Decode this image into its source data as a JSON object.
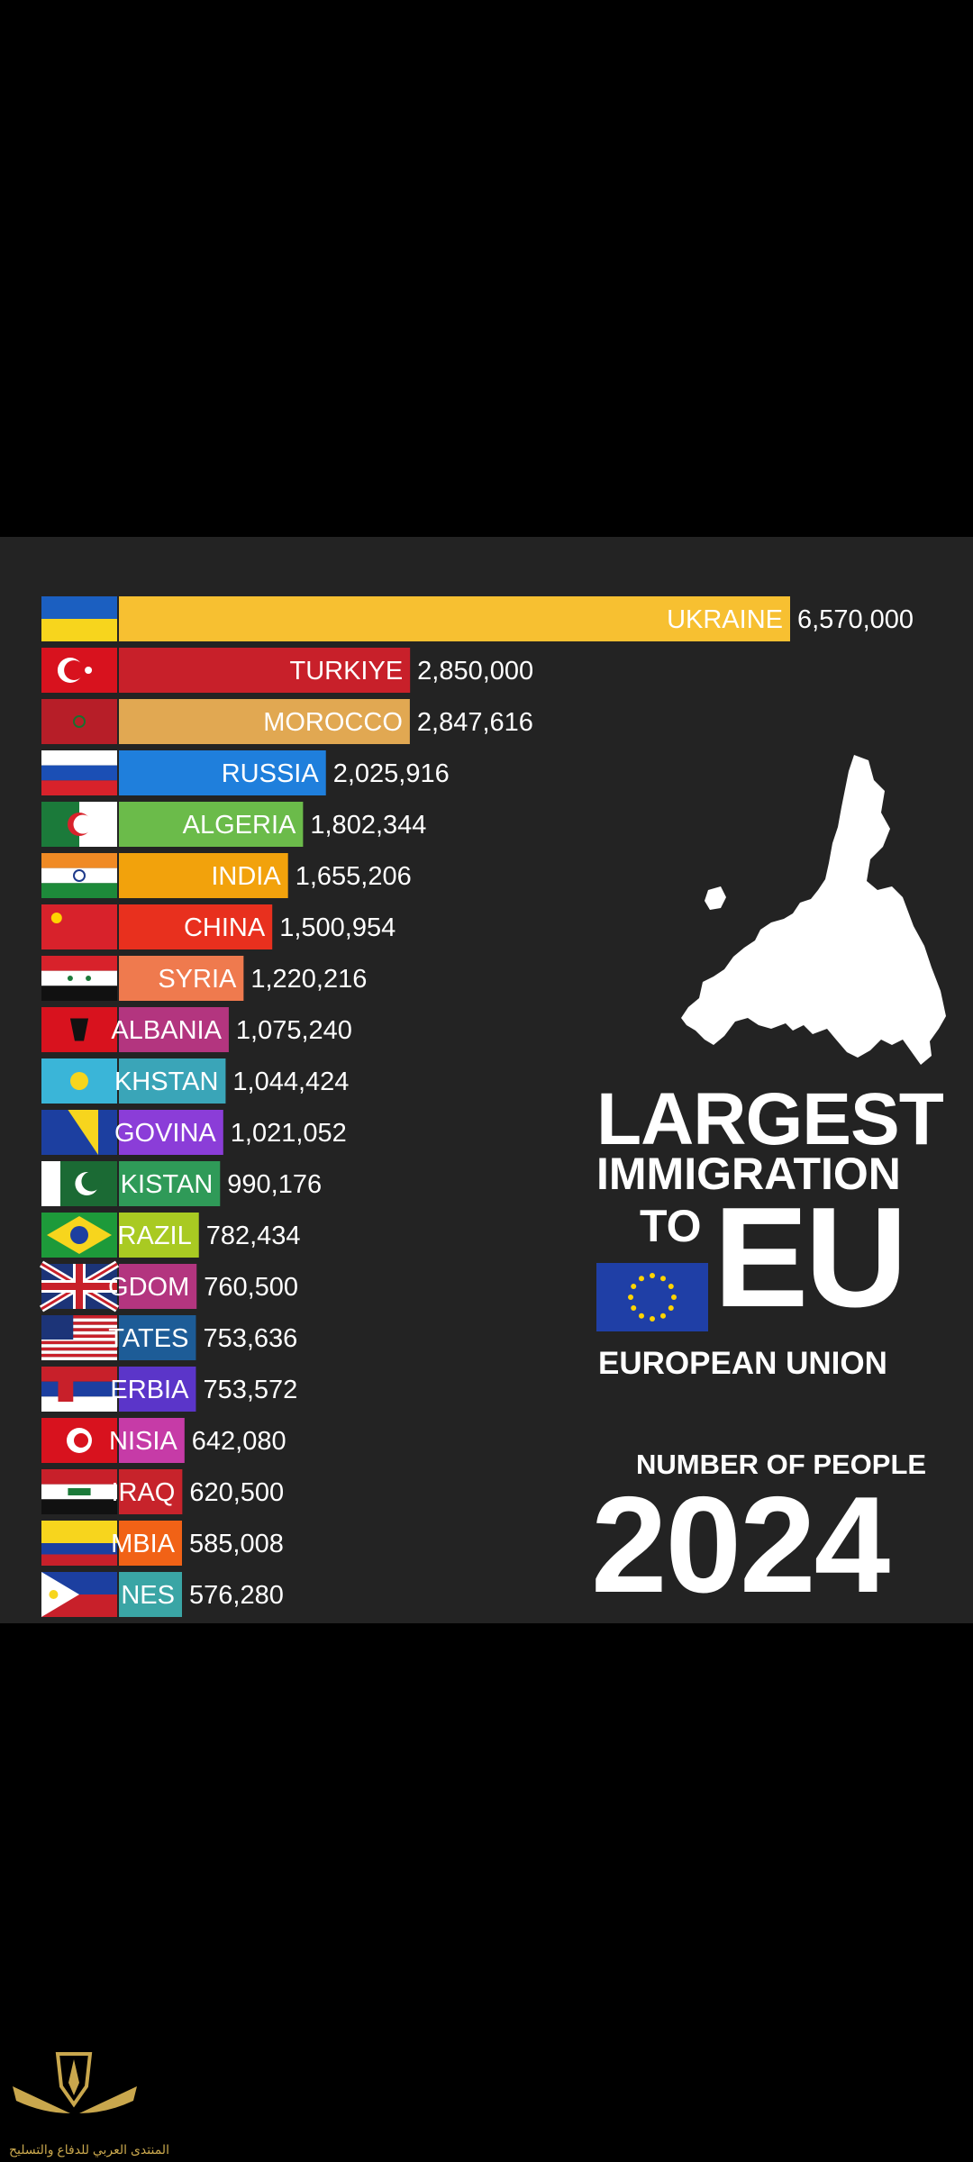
{
  "chart_data": {
    "type": "bar",
    "orientation": "horizontal",
    "categories": [
      "UKRAINE",
      "TURKIYE",
      "MOROCCO",
      "RUSSIA",
      "ALGERIA",
      "INDIA",
      "CHINA",
      "SYRIA",
      "ALBANIA",
      "KHSTAN",
      "GOVINA",
      "KISTAN",
      "RAZIL",
      "GDOM",
      "TATES",
      "ERBIA",
      "NISIA",
      "IRAQ",
      "MBIA",
      "NES"
    ],
    "values": [
      6570000,
      2850000,
      2847616,
      2025916,
      1802344,
      1655206,
      1500954,
      1220216,
      1075240,
      1044424,
      1021052,
      990176,
      782434,
      760500,
      753636,
      753572,
      642080,
      620500,
      585008,
      576280
    ],
    "value_labels": [
      "6,570,000",
      "2,850,000",
      "2,847,616",
      "2,025,916",
      "1,802,344",
      "1,655,206",
      "1,500,954",
      "1,220,216",
      "1,075,240",
      "1,044,424",
      "1,021,052",
      "990,176",
      "782,434",
      "760,500",
      "753,636",
      "753,572",
      "642,080",
      "620,500",
      "585,008",
      "576,280"
    ],
    "colors": [
      "#f7c031",
      "#c8202a",
      "#e1a852",
      "#1f7fdc",
      "#6bbb4a",
      "#f2a20c",
      "#e8301e",
      "#ef7a4e",
      "#b3357f",
      "#3aa5b8",
      "#8b3dd8",
      "#2f9a58",
      "#a9ca22",
      "#b3357f",
      "#1d5c97",
      "#5b35c9",
      "#c63ba7",
      "#c7232b",
      "#f16216",
      "#3aa5a5"
    ],
    "flags": [
      "ukraine",
      "turkey",
      "morocco",
      "russia",
      "algeria",
      "india",
      "china",
      "syria",
      "albania",
      "kazakhstan",
      "bosnia",
      "pakistan",
      "brazil",
      "united-kingdom",
      "united-states",
      "serbia",
      "tunisia",
      "iraq",
      "colombia",
      "philippines"
    ],
    "xlim": [
      0,
      6570000
    ],
    "grid": false,
    "legend": "none"
  },
  "title": {
    "line1": "LARGEST",
    "line2": "IMMIGRATION",
    "line3": "TO",
    "eu": "EU",
    "subtitle": "EUROPEAN UNION",
    "number_label": "NUMBER OF PEOPLE",
    "year": "2024"
  },
  "watermark": {
    "text": "المنتدى العربي للدفاع والتسليح"
  },
  "colors": {
    "background": "#232323",
    "outer": "#000000",
    "text": "#ffffff",
    "eu_blue": "#1f3fa6",
    "eu_star": "#ffd400"
  }
}
